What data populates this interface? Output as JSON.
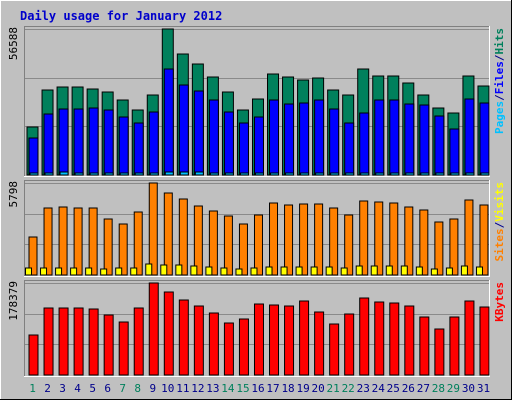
{
  "colors": {
    "background": "#c0c0c0",
    "frame_dark": "#808080",
    "title": "#0000cc",
    "hits": "#00805c",
    "files": "#0000ff",
    "pages": "#00c0ff",
    "visits": "#ffff00",
    "sites": "#ff8000",
    "kbytes": "#ff0000",
    "weekday_label": "#00008b",
    "weekend_label": "#00805c"
  },
  "chart_data": {
    "type": "bar",
    "title": "Daily usage for January 2012",
    "days": [
      "1",
      "2",
      "3",
      "4",
      "5",
      "6",
      "7",
      "8",
      "9",
      "10",
      "11",
      "12",
      "13",
      "14",
      "15",
      "16",
      "17",
      "18",
      "19",
      "20",
      "21",
      "22",
      "23",
      "24",
      "25",
      "26",
      "27",
      "28",
      "29",
      "30",
      "31"
    ],
    "weekend_days": [
      "1",
      "7",
      "8",
      "14",
      "15",
      "21",
      "22",
      "28",
      "29"
    ],
    "panels": [
      {
        "id": "hits-files-pages",
        "ymax_label": "56588",
        "ymax": 56588,
        "grid": true,
        "legend": [
          {
            "label": "Pages",
            "color_key": "pages"
          },
          {
            "label": "/",
            "color_key": "weekday_label"
          },
          {
            "label": "Files",
            "color_key": "files"
          },
          {
            "label": "/",
            "color_key": "weekday_label"
          },
          {
            "label": "Hits",
            "color_key": "hits"
          }
        ],
        "series": [
          {
            "name": "Hits",
            "color_key": "hits",
            "values": [
              18500,
              33000,
              34000,
              34000,
              33500,
              32000,
              29000,
              25000,
              31000,
              56588,
              47000,
              43000,
              38000,
              32000,
              25000,
              29500,
              39000,
              38000,
              37000,
              37500,
              33000,
              31000,
              41000,
              38500,
              38500,
              35500,
              31000,
              26000,
              24000,
              38500,
              34500
            ]
          },
          {
            "name": "Files",
            "color_key": "files",
            "values": [
              14500,
              23500,
              25500,
              25500,
              26000,
              25000,
              22500,
              20000,
              24500,
              41000,
              35000,
              32500,
              29000,
              24500,
              20000,
              22500,
              29000,
              27500,
              28000,
              29000,
              25500,
              20000,
              24000,
              29000,
              29000,
              27500,
              27000,
              23000,
              18000,
              29500,
              28000
            ]
          },
          {
            "name": "Pages",
            "color_key": "pages",
            "values": [
              800,
              900,
              1000,
              950,
              900,
              850,
              800,
              750,
              850,
              1200,
              1100,
              1000,
              950,
              900,
              800,
              850,
              950,
              900,
              900,
              950,
              900,
              800,
              900,
              950,
              950,
              900,
              900,
              800,
              750,
              950,
              900
            ]
          }
        ]
      },
      {
        "id": "visits-sites",
        "ymax_label": "5798",
        "ymax": 5798,
        "grid": true,
        "legend": [
          {
            "label": "Sites",
            "color_key": "sites"
          },
          {
            "label": "/",
            "color_key": "weekday_label"
          },
          {
            "label": "Visits",
            "color_key": "visits"
          }
        ],
        "series": [
          {
            "name": "Sites",
            "color_key": "sites",
            "values": [
              2400,
              4200,
              4300,
              4250,
              4200,
              3500,
              3200,
              3950,
              5798,
              5150,
              4800,
              4350,
              4050,
              3700,
              3200,
              3800,
              4550,
              4400,
              4450,
              4450,
              4250,
              3750,
              4650,
              4600,
              4550,
              4300,
              4100,
              3350,
              3500,
              4700,
              4400
            ]
          },
          {
            "name": "Visits",
            "color_key": "visits",
            "values": [
              410,
              410,
              460,
              430,
              410,
              400,
              410,
              450,
              700,
              650,
              600,
              550,
              500,
              450,
              400,
              450,
              500,
              480,
              500,
              520,
              480,
              430,
              540,
              570,
              560,
              540,
              520,
              400,
              420,
              560,
              520
            ]
          }
        ]
      },
      {
        "id": "kbytes",
        "ymax_label": "178379",
        "ymax": 178379,
        "grid": true,
        "legend": [
          {
            "label": "KBytes",
            "color_key": "kbytes"
          }
        ],
        "series": [
          {
            "name": "KBytes",
            "color_key": "kbytes",
            "values": [
              78000,
              129000,
              129000,
              129000,
              127000,
              117000,
              102000,
              129000,
              178379,
              160000,
              145000,
              134000,
              120000,
              101000,
              108000,
              138000,
              135000,
              134000,
              143000,
              123000,
              98000,
              118000,
              150000,
              142000,
              140000,
              134000,
              112000,
              90000,
              112000,
              144000,
              131000
            ]
          }
        ]
      }
    ]
  }
}
